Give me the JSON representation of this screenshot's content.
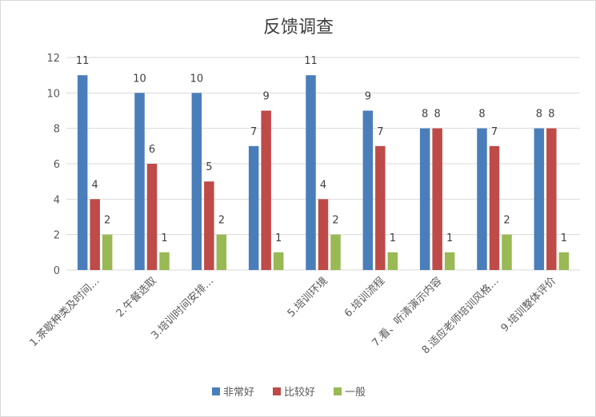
{
  "chart_data": {
    "type": "bar",
    "title": "反馈调查",
    "xlabel": "",
    "ylabel": "",
    "ylim": [
      0,
      12
    ],
    "yticks": [
      0,
      2,
      4,
      6,
      8,
      10,
      12
    ],
    "grid": true,
    "legend_position": "bottom",
    "categories": [
      "1.茶歇种类及时间…",
      "2.午餐选取",
      "3.培训时间安排…",
      "",
      "5.培训环境",
      "6.培训流程",
      "7.看、听清演示内容",
      "8.适应老师培训风格…",
      "9.培训整体评价"
    ],
    "series": [
      {
        "name": "非常好",
        "color": "#4a7ebb",
        "values": [
          11,
          10,
          10,
          7,
          11,
          9,
          8,
          8,
          8
        ]
      },
      {
        "name": "比较好",
        "color": "#be4b48",
        "values": [
          4,
          6,
          5,
          9,
          4,
          7,
          8,
          7,
          8
        ]
      },
      {
        "name": "一般",
        "color": "#98b954",
        "values": [
          2,
          1,
          2,
          1,
          2,
          1,
          1,
          2,
          1
        ]
      }
    ]
  }
}
